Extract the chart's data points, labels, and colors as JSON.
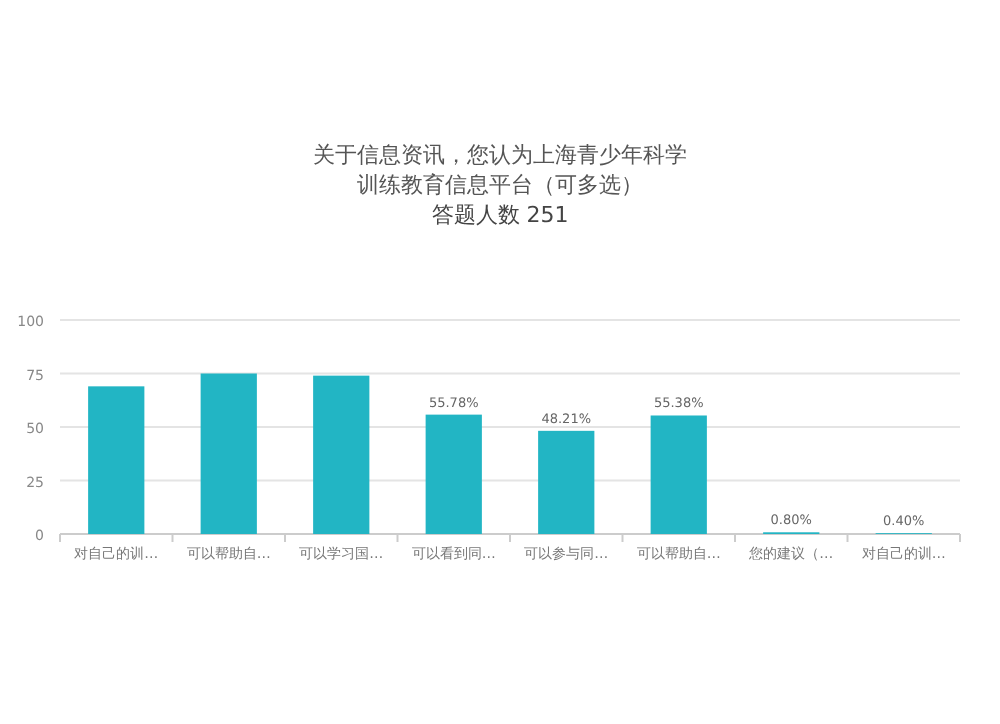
{
  "chart_data": {
    "type": "bar",
    "title": "关于信息资讯，您认为上海青少年科学训练教育信息平台（可多选）",
    "subtitle": "答题人数 251",
    "categories": [
      "对自己的训…",
      "可以帮助自…",
      "可以学习国…",
      "可以看到同…",
      "可以参与同…",
      "可以帮助自…",
      "您的建议（…",
      "对自己的训…"
    ],
    "values": [
      69,
      75,
      74,
      55.78,
      48.21,
      55.38,
      0.8,
      0.4
    ],
    "value_labels": [
      null,
      null,
      null,
      "55.78%",
      "48.21%",
      "55.38%",
      "0.80%",
      "0.40%"
    ],
    "color": "#22b5c4",
    "ylim": [
      0,
      100
    ],
    "yticks": [
      0,
      25,
      50,
      75,
      100
    ],
    "grid": "y"
  }
}
